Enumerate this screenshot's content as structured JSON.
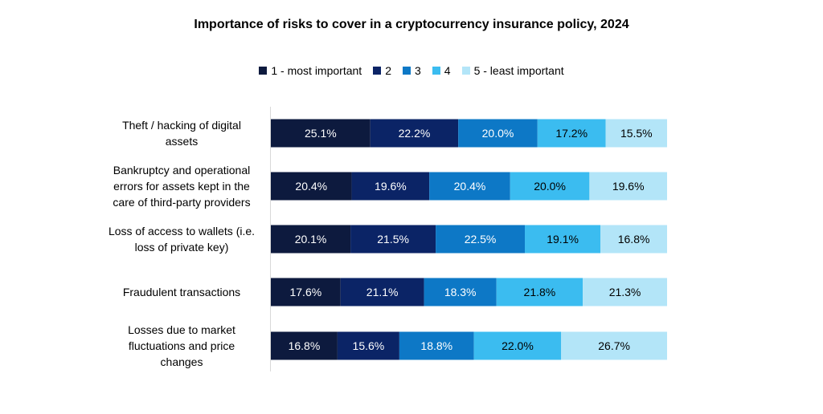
{
  "chart_data": {
    "type": "bar",
    "orientation": "horizontal",
    "stacked": true,
    "title": "Importance of risks to cover in a cryptocurrency insurance policy, 2024",
    "categories": [
      [
        "Theft / hacking of digital",
        "assets"
      ],
      [
        "Bankruptcy and operational",
        "errors for assets kept in the",
        "care of third-party providers"
      ],
      [
        "Loss of access to wallets (i.e.",
        "loss of private key)"
      ],
      [
        "Fraudulent transactions"
      ],
      [
        "Losses due to market",
        "fluctuations and price",
        "changes"
      ]
    ],
    "series": [
      {
        "name": "1 - most important",
        "color": "#0d1a3e",
        "label_color": "#ffffff",
        "values": [
          25.1,
          20.4,
          20.1,
          17.6,
          16.8
        ]
      },
      {
        "name": "2",
        "color": "#0b2466",
        "label_color": "#ffffff",
        "values": [
          22.2,
          19.6,
          21.5,
          21.1,
          15.6
        ]
      },
      {
        "name": "3",
        "color": "#0d78c6",
        "label_color": "#ffffff",
        "values": [
          20.0,
          20.4,
          22.5,
          18.3,
          18.8
        ]
      },
      {
        "name": "4",
        "color": "#3bbcf0",
        "label_color": "#000000",
        "values": [
          17.2,
          20.0,
          19.1,
          21.8,
          22.0
        ]
      },
      {
        "name": "5 - least important",
        "color": "#b3e5f8",
        "label_color": "#000000",
        "values": [
          15.5,
          19.6,
          16.8,
          21.3,
          26.7
        ]
      }
    ],
    "value_suffix": "%",
    "legend_position": "top",
    "grid": false
  }
}
